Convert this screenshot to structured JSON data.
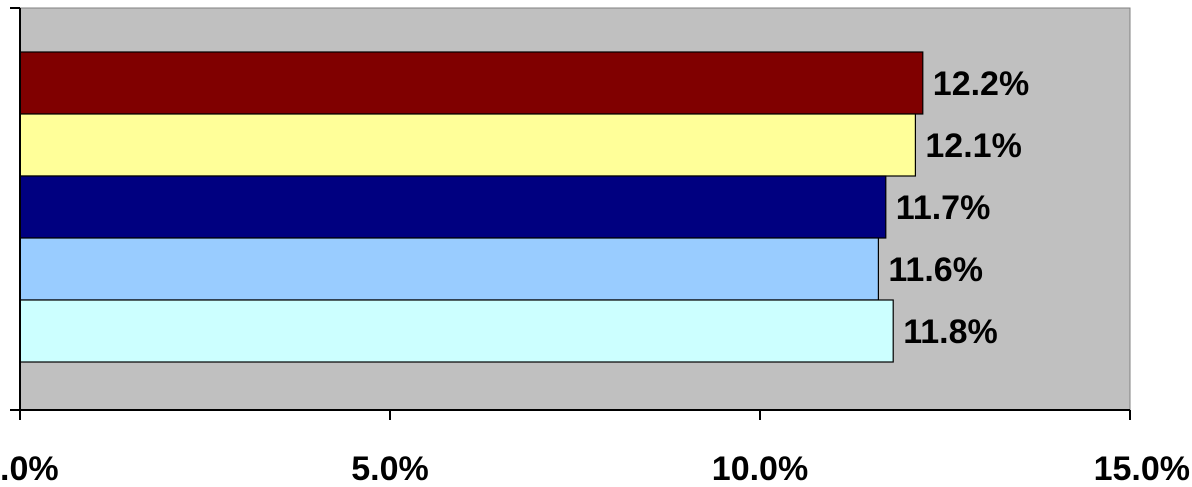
{
  "chart_data": {
    "type": "bar",
    "orientation": "horizontal",
    "values": [
      12.2,
      12.1,
      11.7,
      11.6,
      11.8
    ],
    "value_labels": [
      "12.2%",
      "12.1%",
      "11.7%",
      "11.6%",
      "11.8%"
    ],
    "bar_colors": [
      "#800000",
      "#FFFF99",
      "#000080",
      "#99CCFF",
      "#CCFFFF"
    ],
    "xlim": [
      0,
      15
    ],
    "x_ticks": [
      0,
      5,
      10,
      15
    ],
    "x_tick_labels": [
      ".0%",
      "5.0%",
      "10.0%",
      "15.0%"
    ],
    "title": "",
    "xlabel": "",
    "ylabel": "",
    "grid": false,
    "legend": "none",
    "plot_background": "#C0C0C0"
  }
}
